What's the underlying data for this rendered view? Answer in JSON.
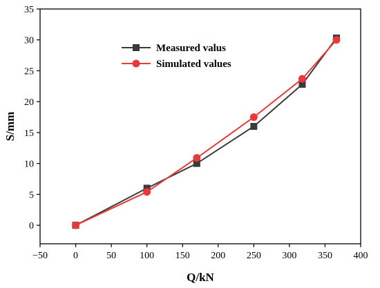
{
  "chart_data": {
    "type": "line",
    "xlabel": "Q/kN",
    "ylabel": "S/mm",
    "xlim": [
      -50,
      400
    ],
    "ylim": [
      -3,
      35
    ],
    "xticks": [
      -50,
      0,
      50,
      100,
      150,
      200,
      250,
      300,
      350,
      400
    ],
    "yticks": [
      0,
      5,
      10,
      15,
      20,
      25,
      30,
      35
    ],
    "xtick_labels": [
      "−50",
      "0",
      "50",
      "100",
      "150",
      "200",
      "250",
      "300",
      "350",
      "400"
    ],
    "ytick_labels": [
      "0",
      "5",
      "10",
      "15",
      "20",
      "25",
      "30",
      "35"
    ],
    "grid": false,
    "legend_position": "top-center",
    "series": [
      {
        "name": "Measured valus",
        "color": "#3a3a3a",
        "marker": "square",
        "x": [
          0,
          100,
          170,
          250,
          318,
          366
        ],
        "y": [
          0,
          6.0,
          10.0,
          16.0,
          22.8,
          30.3
        ]
      },
      {
        "name": "Simulated values",
        "color": "#e8393b",
        "marker": "circle",
        "x": [
          0,
          100,
          170,
          250,
          318,
          366
        ],
        "y": [
          0,
          5.4,
          10.9,
          17.5,
          23.7,
          30.0
        ]
      }
    ]
  }
}
